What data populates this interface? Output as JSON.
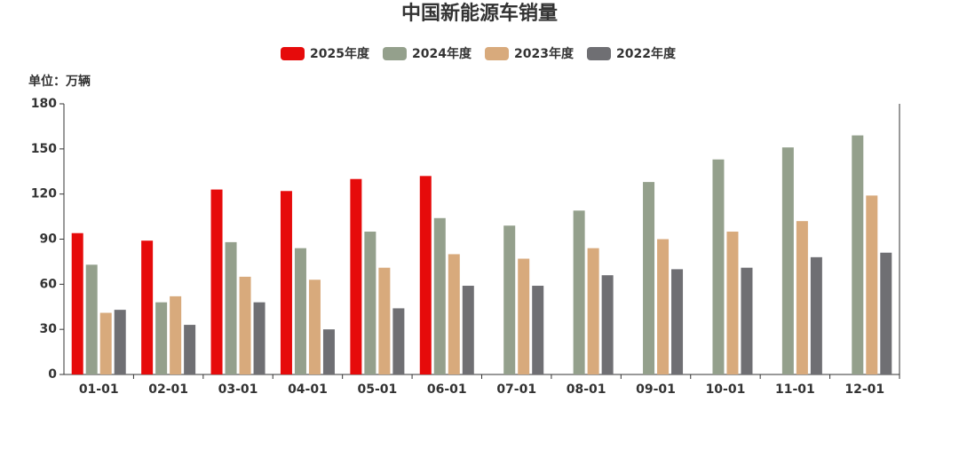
{
  "chart_data": {
    "type": "bar",
    "title": "中国新能源车销量",
    "y_label": "单位：万辆",
    "categories": [
      "01-01",
      "02-01",
      "03-01",
      "04-01",
      "05-01",
      "06-01",
      "07-01",
      "08-01",
      "09-01",
      "10-01",
      "11-01",
      "12-01"
    ],
    "series": [
      {
        "name": "2025年度",
        "color": "#e60b0b",
        "values": [
          94,
          89,
          123,
          122,
          130,
          132,
          null,
          null,
          null,
          null,
          null,
          null
        ]
      },
      {
        "name": "2024年度",
        "color": "#94a08c",
        "values": [
          73,
          48,
          88,
          84,
          95,
          104,
          99,
          109,
          128,
          143,
          151,
          159
        ]
      },
      {
        "name": "2023年度",
        "color": "#d8aa7c",
        "values": [
          41,
          52,
          65,
          63,
          71,
          80,
          77,
          84,
          90,
          95,
          102,
          119
        ]
      },
      {
        "name": "2022年度",
        "color": "#6f6f73",
        "values": [
          43,
          33,
          48,
          30,
          44,
          59,
          59,
          66,
          70,
          71,
          78,
          81
        ]
      }
    ],
    "ylim": [
      0,
      180
    ],
    "yticks": [
      0,
      30,
      60,
      90,
      120,
      150,
      180
    ],
    "grid": false,
    "legend": "top"
  }
}
